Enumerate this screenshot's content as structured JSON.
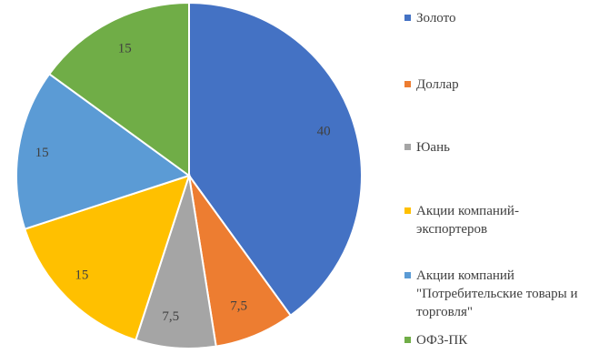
{
  "chart_data": {
    "type": "pie",
    "title": "",
    "start_angle_deg": 0,
    "direction": "clockwise",
    "legend_position": "right",
    "slices": [
      {
        "name": "Золото",
        "value": 40,
        "label": "40",
        "color": "#4472C4"
      },
      {
        "name": "Доллар",
        "value": 7.5,
        "label": "7,5",
        "color": "#ED7D31"
      },
      {
        "name": "Юань",
        "value": 7.5,
        "label": "7,5",
        "color": "#A5A5A5"
      },
      {
        "name": "Акции компаний-экспортеров",
        "value": 15,
        "label": "15",
        "color": "#FFC000"
      },
      {
        "name": "Акции компаний \"Потребительские товары и торговля\"",
        "value": 15,
        "label": "15",
        "color": "#5B9BD5"
      },
      {
        "name": "ОФЗ-ПК",
        "value": 15,
        "label": "15",
        "color": "#70AD47"
      }
    ]
  }
}
